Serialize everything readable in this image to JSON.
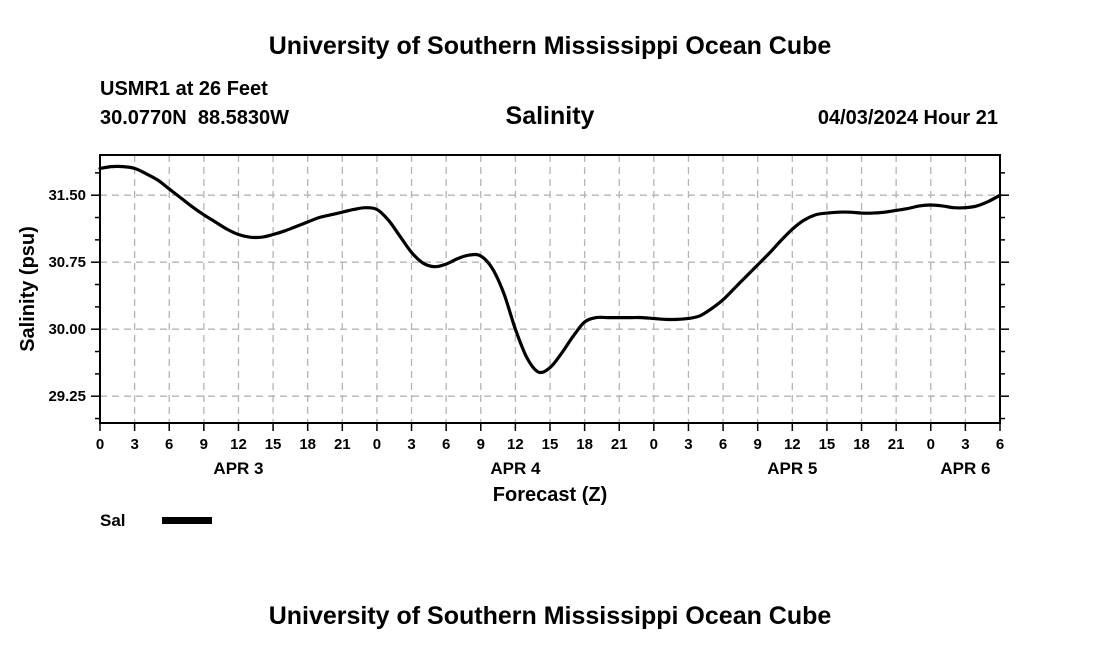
{
  "header": {
    "title": "University of Southern Mississippi Ocean Cube",
    "station": "USMR1 at 26 Feet",
    "coords": "30.0770N  88.5830W",
    "variable": "Salinity",
    "datetime": "04/03/2024 Hour 21"
  },
  "footer": {
    "title": "University of Southern Mississippi Ocean Cube"
  },
  "colors": {
    "line": "#000000",
    "grid": "#b4b4b4",
    "frame": "#000000"
  },
  "chart_data": {
    "type": "line",
    "title": "Salinity",
    "xlabel": "Forecast (Z)",
    "ylabel": "Salinity (psu)",
    "xlim": [
      0,
      78
    ],
    "ylim": [
      28.95,
      31.95
    ],
    "yticks": [
      29.25,
      30.0,
      30.75,
      31.5
    ],
    "ytick_labels": [
      "29.25",
      "30.00",
      "30.75",
      "31.50"
    ],
    "x_grid_step_hours": 3,
    "xtick_labels": [
      "0",
      "3",
      "6",
      "9",
      "12",
      "15",
      "18",
      "21",
      "0",
      "3",
      "6",
      "9",
      "12",
      "15",
      "18",
      "21",
      "0",
      "3",
      "6",
      "9",
      "12",
      "15",
      "18",
      "21",
      "0",
      "3",
      "6"
    ],
    "date_labels": [
      {
        "label": "APR 3",
        "hour": 12
      },
      {
        "label": "APR 4",
        "hour": 36
      },
      {
        "label": "APR 5",
        "hour": 60
      },
      {
        "label": "APR 6",
        "hour": 75
      }
    ],
    "grid": true,
    "legend": [
      {
        "name": "Sal",
        "position": "bottom-left"
      }
    ],
    "series": [
      {
        "name": "Sal",
        "x": [
          0,
          1,
          2,
          3,
          4,
          5,
          6,
          7,
          8,
          9,
          10,
          11,
          12,
          13,
          14,
          15,
          16,
          17,
          18,
          19,
          20,
          21,
          22,
          23,
          24,
          25,
          26,
          27,
          28,
          29,
          30,
          31,
          32,
          33,
          34,
          35,
          36,
          37,
          38,
          39,
          40,
          41,
          42,
          43,
          44,
          45,
          46,
          47,
          48,
          49,
          50,
          51,
          52,
          53,
          54,
          55,
          56,
          57,
          58,
          59,
          60,
          61,
          62,
          63,
          64,
          65,
          66,
          67,
          68,
          69,
          70,
          71,
          72,
          73,
          74,
          75,
          76,
          77,
          78
        ],
        "y": [
          31.8,
          31.82,
          31.82,
          31.8,
          31.74,
          31.67,
          31.57,
          31.47,
          31.37,
          31.28,
          31.2,
          31.12,
          31.06,
          31.03,
          31.03,
          31.06,
          31.1,
          31.15,
          31.2,
          31.25,
          31.28,
          31.31,
          31.34,
          31.36,
          31.34,
          31.22,
          31.04,
          30.86,
          30.74,
          30.7,
          30.73,
          30.79,
          30.83,
          30.82,
          30.68,
          30.4,
          30.0,
          29.68,
          29.52,
          29.57,
          29.73,
          29.92,
          30.08,
          30.13,
          30.13,
          30.13,
          30.13,
          30.13,
          30.12,
          30.11,
          30.11,
          30.12,
          30.15,
          30.23,
          30.33,
          30.46,
          30.59,
          30.72,
          30.85,
          30.99,
          31.12,
          31.22,
          31.28,
          31.3,
          31.31,
          31.31,
          31.3,
          31.3,
          31.31,
          31.33,
          31.35,
          31.38,
          31.39,
          31.38,
          31.36,
          31.36,
          31.38,
          31.43,
          31.5
        ]
      }
    ]
  }
}
